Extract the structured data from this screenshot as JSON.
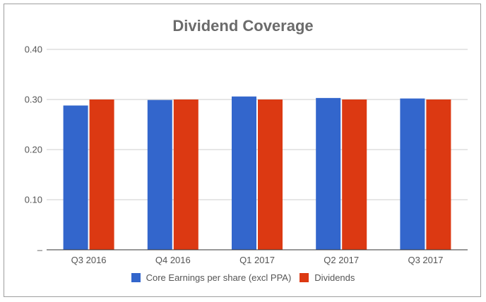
{
  "chart_data": {
    "type": "bar",
    "title": "Dividend Coverage",
    "xlabel": "",
    "ylabel": "",
    "categories": [
      "Q3 2016",
      "Q4 2016",
      "Q1 2017",
      "Q2 2017",
      "Q3 2017"
    ],
    "series": [
      {
        "name": "Core Earnings per share (excl PPA)",
        "color": "#3366cc",
        "values": [
          0.288,
          0.299,
          0.306,
          0.303,
          0.302
        ]
      },
      {
        "name": "Dividends",
        "color": "#dc3912",
        "values": [
          0.3,
          0.3,
          0.3,
          0.3,
          0.3
        ]
      }
    ],
    "ylim": [
      0,
      0.4
    ],
    "yticks": [
      "–",
      "0.10",
      "0.20",
      "0.30",
      "0.40"
    ],
    "grid": true,
    "legend_position": "bottom"
  }
}
